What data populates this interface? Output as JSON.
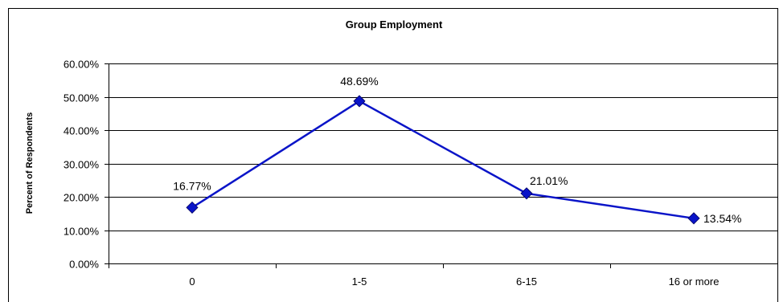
{
  "chart_data": {
    "type": "line",
    "title": "Group Employment",
    "xlabel": "",
    "ylabel": "Percent of Respondents",
    "categories": [
      "0",
      "1-5",
      "6-15",
      "16 or more"
    ],
    "series": [
      {
        "values": [
          16.77,
          48.69,
          21.01,
          13.54
        ],
        "data_labels": [
          "16.77%",
          "48.69%",
          "21.01%",
          "13.54%"
        ]
      }
    ],
    "ylim": [
      0,
      60
    ],
    "y_ticks": [
      0,
      10,
      20,
      30,
      40,
      50,
      60
    ],
    "y_tick_labels": [
      "0.00%",
      "10.00%",
      "20.00%",
      "30.00%",
      "40.00%",
      "50.00%",
      "60.00%"
    ],
    "grid": true,
    "legend": "none",
    "colors": {
      "series": "#0a14c8",
      "gridline": "#000000",
      "border": "#000000"
    },
    "marker": "diamond"
  }
}
